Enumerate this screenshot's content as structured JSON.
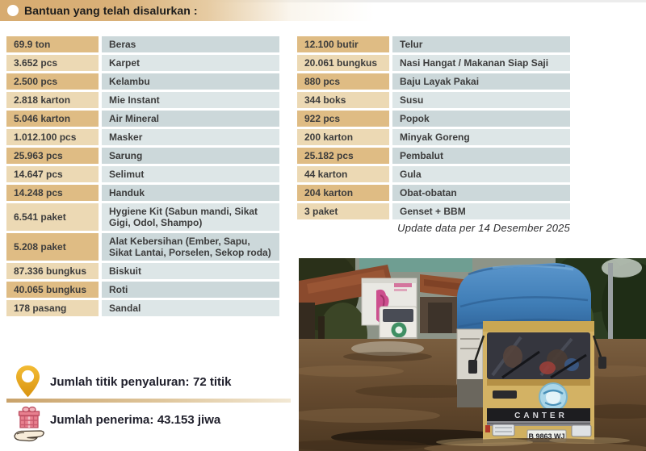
{
  "header": {
    "title": "Bantuan yang telah disalurkan :"
  },
  "tables": {
    "left": {
      "rows": [
        {
          "qty": "69.9 ton",
          "item": "Beras"
        },
        {
          "qty": "3.652 pcs",
          "item": "Karpet"
        },
        {
          "qty": "2.500 pcs",
          "item": "Kelambu"
        },
        {
          "qty": "2.818 karton",
          "item": "Mie Instant"
        },
        {
          "qty": "5.046 karton",
          "item": "Air Mineral"
        },
        {
          "qty": "1.012.100 pcs",
          "item": "Masker"
        },
        {
          "qty": "25.963 pcs",
          "item": "Sarung"
        },
        {
          "qty": "14.647 pcs",
          "item": "Selimut"
        },
        {
          "qty": "14.248 pcs",
          "item": "Handuk"
        },
        {
          "qty": "6.541 paket",
          "item": "Hygiene Kit (Sabun mandi, Sikat Gigi, Odol, Shampo)"
        },
        {
          "qty": "5.208 paket",
          "item": "Alat Kebersihan (Ember, Sapu, Sikat Lantai, Porselen, Sekop roda)"
        },
        {
          "qty": "87.336 bungkus",
          "item": "Biskuit"
        },
        {
          "qty": "40.065 bungkus",
          "item": "Roti"
        },
        {
          "qty": "178 pasang",
          "item": "Sandal"
        }
      ]
    },
    "right": {
      "rows": [
        {
          "qty": "12.100 butir",
          "item": "Telur"
        },
        {
          "qty": "20.061 bungkus",
          "item": "Nasi Hangat / Makanan Siap Saji"
        },
        {
          "qty": "880 pcs",
          "item": "Baju Layak Pakai"
        },
        {
          "qty": "344 boks",
          "item": "Susu"
        },
        {
          "qty": "922 pcs",
          "item": "Popok"
        },
        {
          "qty": "200 karton",
          "item": "Minyak Goreng"
        },
        {
          "qty": "25.182 pcs",
          "item": "Pembalut"
        },
        {
          "qty": "44 karton",
          "item": "Gula"
        },
        {
          "qty": "204 karton",
          "item": "Obat-obatan"
        },
        {
          "qty": "3 paket",
          "item": "Genset + BBM"
        }
      ]
    }
  },
  "update_note": "Update data per 14 Desember 2025",
  "summary": {
    "distribution_points": {
      "label": "Jumlah titik penyaluran:",
      "value": "72 titik"
    },
    "recipients": {
      "label": "Jumlah penerima:",
      "value": "43.153 jiwa"
    }
  },
  "photo": {
    "description": "Yellow aid truck with blue tarp cargo and white box truck driving through brown flood water past houses and trees",
    "truck_brand": "CANTER",
    "license_plate": "B 9863 WJ"
  },
  "icons": {
    "pin": "map-pin-icon",
    "gift": "gift-in-hand-icon"
  },
  "colors": {
    "header_tan": "#d7ab70",
    "qty_dark": "#dfbc84",
    "qty_light": "#ecd9b4",
    "item_dark": "#ccd8da",
    "item_light": "#dde6e7",
    "pin_gold": "#e8a61e",
    "gift_pink": "#e8808f",
    "water_brown": "#6b5138",
    "tarp_blue": "#3f7db6",
    "truck_yellow": "#d3b264"
  }
}
